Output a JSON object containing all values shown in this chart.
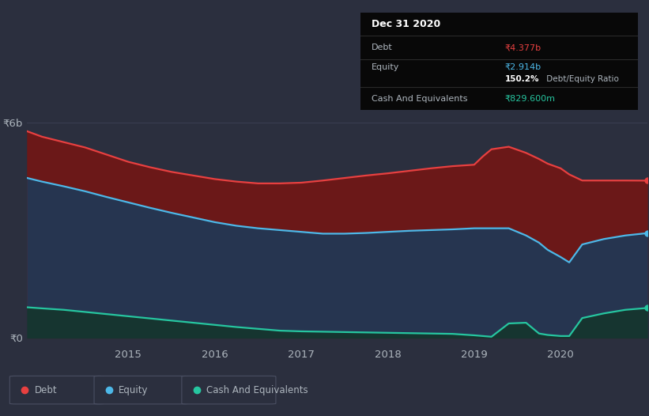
{
  "bg_color": "#2b2f3e",
  "chart_bg": "#2b2f3e",
  "years_x": [
    2013.83,
    2014.0,
    2014.25,
    2014.5,
    2014.75,
    2015.0,
    2015.25,
    2015.5,
    2015.75,
    2016.0,
    2016.25,
    2016.5,
    2016.75,
    2017.0,
    2017.25,
    2017.5,
    2017.75,
    2018.0,
    2018.25,
    2018.5,
    2018.75,
    2019.0,
    2019.1,
    2019.2,
    2019.4,
    2019.6,
    2019.75,
    2019.85,
    2020.0,
    2020.1,
    2020.25,
    2020.5,
    2020.75,
    2021.0
  ],
  "debt": [
    5.75,
    5.6,
    5.45,
    5.3,
    5.1,
    4.9,
    4.75,
    4.62,
    4.52,
    4.42,
    4.35,
    4.3,
    4.3,
    4.32,
    4.38,
    4.45,
    4.52,
    4.58,
    4.65,
    4.72,
    4.78,
    4.82,
    5.05,
    5.25,
    5.32,
    5.15,
    4.98,
    4.85,
    4.72,
    4.55,
    4.38,
    4.38,
    4.38,
    4.377
  ],
  "equity": [
    4.45,
    4.35,
    4.22,
    4.08,
    3.92,
    3.77,
    3.62,
    3.48,
    3.35,
    3.22,
    3.12,
    3.05,
    3.0,
    2.95,
    2.9,
    2.9,
    2.92,
    2.95,
    2.98,
    3.0,
    3.02,
    3.05,
    3.05,
    3.05,
    3.05,
    2.85,
    2.65,
    2.45,
    2.25,
    2.1,
    2.6,
    2.75,
    2.85,
    2.914
  ],
  "cash": [
    0.85,
    0.82,
    0.78,
    0.72,
    0.66,
    0.6,
    0.54,
    0.48,
    0.42,
    0.36,
    0.3,
    0.25,
    0.2,
    0.18,
    0.17,
    0.16,
    0.15,
    0.14,
    0.13,
    0.12,
    0.11,
    0.07,
    0.05,
    0.03,
    0.4,
    0.42,
    0.12,
    0.08,
    0.05,
    0.05,
    0.55,
    0.68,
    0.78,
    0.83
  ],
  "debt_color": "#e84040",
  "equity_color": "#4db8e8",
  "cash_color": "#26c6a0",
  "debt_fill_color": "#6b1818",
  "equity_fill_color": "#263550",
  "cash_fill_color": "#163530",
  "ylim_top": 6.8,
  "ylim_bottom": -0.15,
  "y6_value": 6.0,
  "y0_value": 0.0,
  "grid_color": "#3a3f52",
  "text_color": "#adb5bd",
  "x_ticks": [
    2015,
    2016,
    2017,
    2018,
    2019,
    2020
  ],
  "info_box_bg": "#080808",
  "info_title": "Dec 31 2020",
  "info_debt_label": "Debt",
  "info_debt_value": "₹4.377b",
  "info_equity_label": "Equity",
  "info_equity_value": "₹2.914b",
  "info_ratio_bold": "150.2%",
  "info_ratio_rest": " Debt/Equity Ratio",
  "info_cash_label": "Cash And Equivalents",
  "info_cash_value": "₹829.600m",
  "legend_items": [
    {
      "label": "Debt",
      "color": "#e84040"
    },
    {
      "label": "Equity",
      "color": "#4db8e8"
    },
    {
      "label": "Cash And Equivalents",
      "color": "#26c6a0"
    }
  ]
}
